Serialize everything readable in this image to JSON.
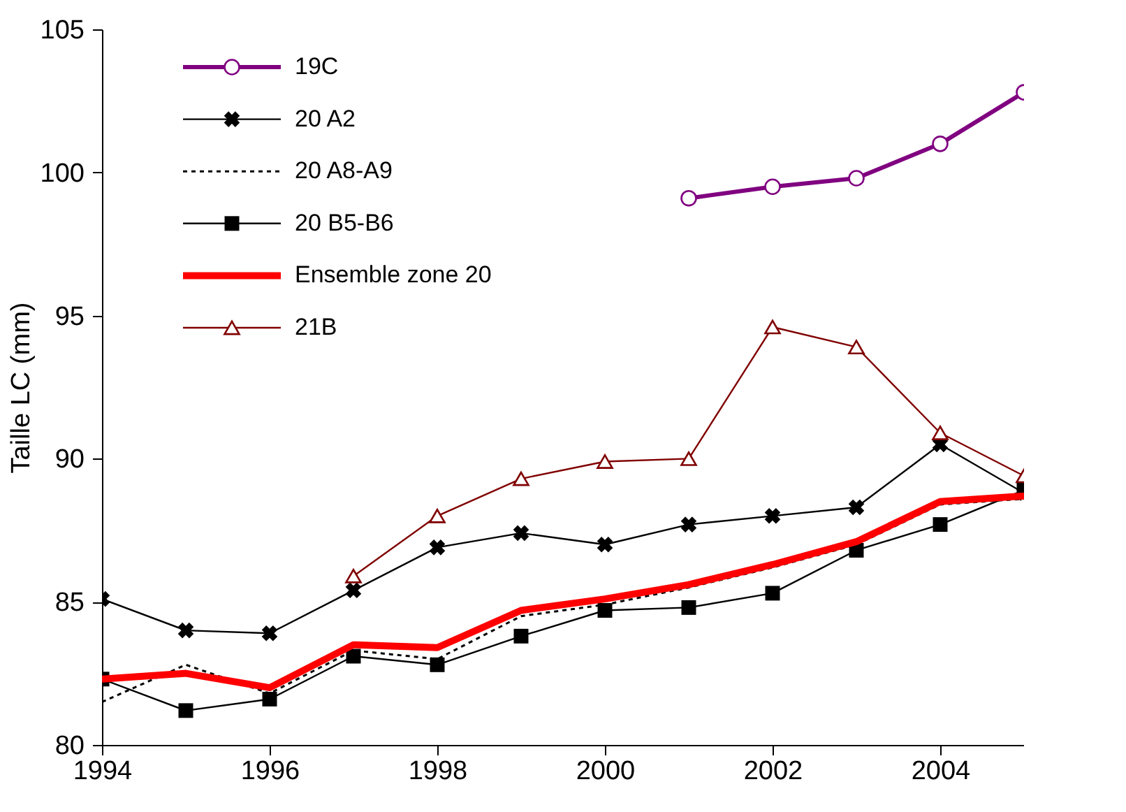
{
  "chart_data": {
    "type": "line",
    "ylabel": "Taille LC (mm)",
    "x": [
      1994,
      1995,
      1996,
      1997,
      1998,
      1999,
      2000,
      2001,
      2002,
      2003,
      2004,
      2005
    ],
    "series": [
      {
        "name": "19C",
        "color": "#800080",
        "marker": "circle",
        "line_style": "solid",
        "x": [
          2001,
          2002,
          2003,
          2004,
          2005
        ],
        "values": [
          99.1,
          99.5,
          99.8,
          101.0,
          102.8
        ]
      },
      {
        "name": "20 A2",
        "color": "#000000",
        "marker": "cross",
        "line_style": "solid",
        "values": [
          85.1,
          84.0,
          83.9,
          85.4,
          86.9,
          87.4,
          87.0,
          87.7,
          88.0,
          88.3,
          90.5,
          88.8
        ]
      },
      {
        "name": "20 A8-A9",
        "color": "#000000",
        "marker": "none",
        "line_style": "dotted",
        "values": [
          81.5,
          82.8,
          81.8,
          83.3,
          83.0,
          84.5,
          84.9,
          85.5,
          86.2,
          87.0,
          88.4,
          88.6
        ]
      },
      {
        "name": "20 B5-B6",
        "color": "#000000",
        "marker": "square",
        "line_style": "solid",
        "values": [
          82.3,
          81.2,
          81.6,
          83.1,
          82.8,
          83.8,
          84.7,
          84.8,
          85.3,
          86.8,
          87.7,
          88.9
        ]
      },
      {
        "name": "Ensemble zone 20",
        "color": "#ff0000",
        "marker": "none",
        "line_style": "solid",
        "values": [
          82.3,
          82.5,
          82.0,
          83.5,
          83.4,
          84.7,
          85.1,
          85.6,
          86.3,
          87.1,
          88.5,
          88.7
        ]
      },
      {
        "name": "21B",
        "color": "#800000",
        "marker": "triangle",
        "line_style": "solid",
        "x": [
          1997,
          1998,
          1999,
          2000,
          2001,
          2002,
          2003,
          2004,
          2005
        ],
        "values": [
          85.9,
          88.0,
          89.3,
          89.9,
          90.0,
          94.6,
          93.9,
          90.9,
          89.4
        ]
      }
    ],
    "xlim": [
      1994,
      2005
    ],
    "xticks": [
      1994,
      1996,
      1998,
      2000,
      2002,
      2004
    ],
    "ylim": [
      80,
      105
    ],
    "yticks": [
      80,
      85,
      90,
      95,
      100,
      105
    ],
    "grid": false,
    "legend": "top left"
  }
}
